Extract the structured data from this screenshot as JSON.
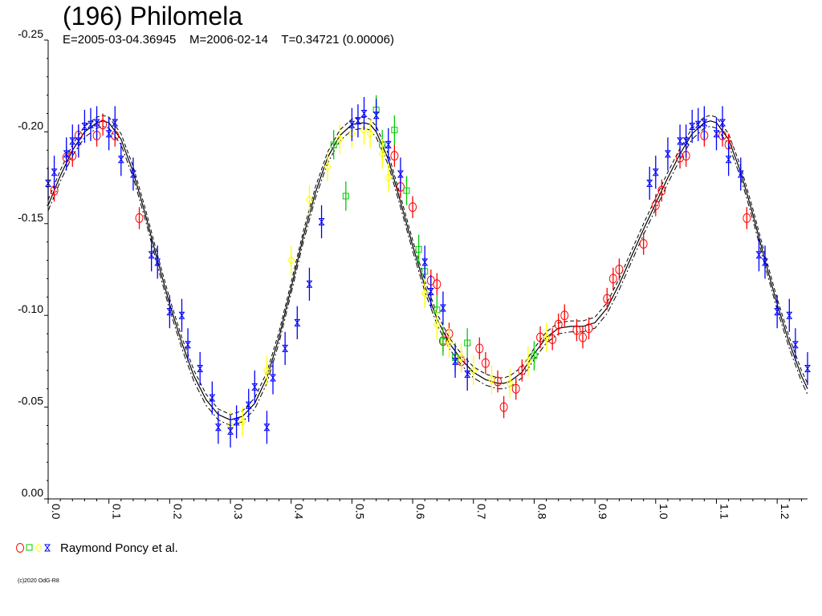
{
  "chart_data": {
    "type": "scatter",
    "title": "(196) Philomela",
    "subtitle": "E=2005-03-04.36945    M=2006-02-14    T=0.34721 (0.00006)",
    "xlabel": "",
    "ylabel": "",
    "xlim": [
      0,
      1.25
    ],
    "ylim": [
      0.0,
      -0.25
    ],
    "y_axis_inverted": true,
    "grid": false,
    "yticks": [
      "-0.25",
      "-0.20",
      "-0.15",
      "-0.10",
      "-0.05",
      "0.00"
    ],
    "ytick_values": [
      -0.25,
      -0.2,
      -0.15,
      -0.1,
      -0.05,
      0.0
    ],
    "xticks": [
      "0.0",
      "0.1",
      "0.2",
      "0.3",
      "0.4",
      "0.5",
      "0.6",
      "0.7",
      "0.8",
      "0.9",
      "1.0",
      "1.1",
      "1.2"
    ],
    "xtick_values": [
      0.0,
      0.1,
      0.2,
      0.3,
      0.4,
      0.5,
      0.6,
      0.7,
      0.8,
      0.9,
      1.0,
      1.1,
      1.2
    ],
    "legend": {
      "label": "Raymond Poncy et al.",
      "placement": "bottom-left"
    },
    "colors": {
      "red": "#ff0000",
      "green": "#00cc00",
      "yellow": "#ffff00",
      "blue": "#0000ff",
      "curve": "#000000"
    },
    "fit_curve": {
      "x": [
        0.0,
        0.02,
        0.04,
        0.06,
        0.08,
        0.09,
        0.1,
        0.12,
        0.14,
        0.16,
        0.18,
        0.2,
        0.22,
        0.24,
        0.26,
        0.28,
        0.3,
        0.32,
        0.34,
        0.36,
        0.38,
        0.4,
        0.42,
        0.44,
        0.46,
        0.48,
        0.5,
        0.52,
        0.53,
        0.54,
        0.56,
        0.58,
        0.6,
        0.62,
        0.64,
        0.66,
        0.68,
        0.7,
        0.72,
        0.74,
        0.75,
        0.76,
        0.78,
        0.8,
        0.82,
        0.84,
        0.86,
        0.88,
        0.9,
        0.92,
        0.94,
        0.96,
        0.98,
        1.0,
        1.02,
        1.04,
        1.06,
        1.08,
        1.09,
        1.1,
        1.12,
        1.14,
        1.16,
        1.18,
        1.2,
        1.22,
        1.24,
        1.25
      ],
      "y": [
        -0.16,
        -0.176,
        -0.19,
        -0.2,
        -0.205,
        -0.206,
        -0.205,
        -0.196,
        -0.178,
        -0.155,
        -0.13,
        -0.106,
        -0.085,
        -0.067,
        -0.054,
        -0.046,
        -0.043,
        -0.045,
        -0.052,
        -0.066,
        -0.088,
        -0.115,
        -0.143,
        -0.167,
        -0.186,
        -0.198,
        -0.204,
        -0.205,
        -0.204,
        -0.2,
        -0.185,
        -0.162,
        -0.138,
        -0.116,
        -0.098,
        -0.085,
        -0.076,
        -0.069,
        -0.065,
        -0.063,
        -0.063,
        -0.064,
        -0.069,
        -0.079,
        -0.088,
        -0.093,
        -0.094,
        -0.094,
        -0.096,
        -0.104,
        -0.117,
        -0.132,
        -0.147,
        -0.161,
        -0.175,
        -0.188,
        -0.199,
        -0.205,
        -0.206,
        -0.205,
        -0.196,
        -0.178,
        -0.155,
        -0.13,
        -0.106,
        -0.085,
        -0.067,
        -0.06
      ],
      "band": 0.003
    },
    "series": [
      {
        "marker": "circle",
        "color": "#ff0000",
        "x": [
          0.01,
          0.03,
          0.04,
          0.05,
          0.08,
          0.09,
          0.11,
          0.15,
          0.57,
          0.58,
          0.6,
          0.63,
          0.64,
          0.65,
          0.66,
          0.68,
          0.71,
          0.72,
          0.74,
          0.75,
          0.77,
          0.78,
          0.81,
          0.83,
          0.84,
          0.85,
          0.87,
          0.88,
          0.89,
          0.92,
          0.93,
          0.94,
          0.98,
          1.0,
          1.01,
          1.04,
          1.05,
          1.08,
          1.11,
          1.12,
          1.15
        ],
        "y": [
          -0.168,
          -0.186,
          -0.187,
          -0.198,
          -0.198,
          -0.204,
          -0.198,
          -0.153,
          -0.187,
          -0.17,
          -0.159,
          -0.119,
          -0.117,
          -0.086,
          -0.09,
          -0.075,
          -0.082,
          -0.074,
          -0.064,
          -0.05,
          -0.06,
          -0.07,
          -0.088,
          -0.087,
          -0.095,
          -0.1,
          -0.092,
          -0.088,
          -0.093,
          -0.109,
          -0.12,
          -0.125,
          -0.139,
          -0.16,
          -0.168,
          -0.186,
          -0.187,
          -0.198,
          -0.198,
          -0.193,
          -0.153
        ],
        "err": 0.006
      },
      {
        "marker": "square",
        "color": "#00cc00",
        "x": [
          0.47,
          0.49,
          0.54,
          0.55,
          0.57,
          0.59,
          0.61,
          0.62,
          0.64,
          0.65,
          0.67,
          0.69,
          0.8
        ],
        "y": [
          -0.193,
          -0.165,
          -0.212,
          -0.193,
          -0.201,
          -0.168,
          -0.136,
          -0.124,
          -0.103,
          -0.086,
          -0.077,
          -0.085,
          -0.078
        ],
        "err": 0.008
      },
      {
        "marker": "diamond",
        "color": "#ffff00",
        "x": [
          0.3,
          0.32,
          0.36,
          0.4,
          0.43,
          0.46,
          0.48,
          0.5,
          0.52,
          0.53,
          0.55,
          0.56,
          0.62,
          0.64,
          0.66,
          0.68,
          0.7,
          0.73,
          0.76,
          0.79,
          0.82
        ],
        "y": [
          -0.04,
          -0.042,
          -0.07,
          -0.13,
          -0.163,
          -0.181,
          -0.196,
          -0.199,
          -0.201,
          -0.199,
          -0.188,
          -0.175,
          -0.112,
          -0.095,
          -0.085,
          -0.077,
          -0.07,
          -0.065,
          -0.063,
          -0.075,
          -0.088
        ],
        "err": 0.008
      },
      {
        "marker": "bowtie",
        "color": "#0000ff",
        "x": [
          0.0,
          0.01,
          0.03,
          0.04,
          0.05,
          0.06,
          0.07,
          0.08,
          0.1,
          0.11,
          0.12,
          0.14,
          0.17,
          0.18,
          0.2,
          0.22,
          0.23,
          0.25,
          0.27,
          0.28,
          0.3,
          0.31,
          0.33,
          0.34,
          0.36,
          0.37,
          0.39,
          0.41,
          0.43,
          0.45,
          0.5,
          0.51,
          0.52,
          0.54,
          0.56,
          0.58,
          0.62,
          0.63,
          0.65,
          0.67,
          0.69,
          0.99,
          1.0,
          1.02,
          1.04,
          1.05,
          1.06,
          1.07,
          1.08,
          1.1,
          1.11,
          1.12,
          1.14,
          1.17,
          1.18,
          1.2,
          1.22,
          1.23,
          1.25
        ],
        "y": [
          -0.172,
          -0.178,
          -0.188,
          -0.195,
          -0.195,
          -0.203,
          -0.204,
          -0.205,
          -0.199,
          -0.205,
          -0.185,
          -0.177,
          -0.133,
          -0.129,
          -0.102,
          -0.1,
          -0.084,
          -0.071,
          -0.055,
          -0.039,
          -0.037,
          -0.042,
          -0.051,
          -0.061,
          -0.039,
          -0.066,
          -0.082,
          -0.096,
          -0.117,
          -0.151,
          -0.204,
          -0.206,
          -0.21,
          -0.209,
          -0.193,
          -0.177,
          -0.129,
          -0.113,
          -0.104,
          -0.075,
          -0.068,
          -0.172,
          -0.178,
          -0.188,
          -0.195,
          -0.195,
          -0.203,
          -0.204,
          -0.205,
          -0.199,
          -0.205,
          -0.185,
          -0.177,
          -0.133,
          -0.129,
          -0.102,
          -0.1,
          -0.084,
          -0.071
        ],
        "err": 0.009
      }
    ]
  },
  "legend_label": "Raymond Poncy et al.",
  "credit": "(c)2020 OdG-R8"
}
